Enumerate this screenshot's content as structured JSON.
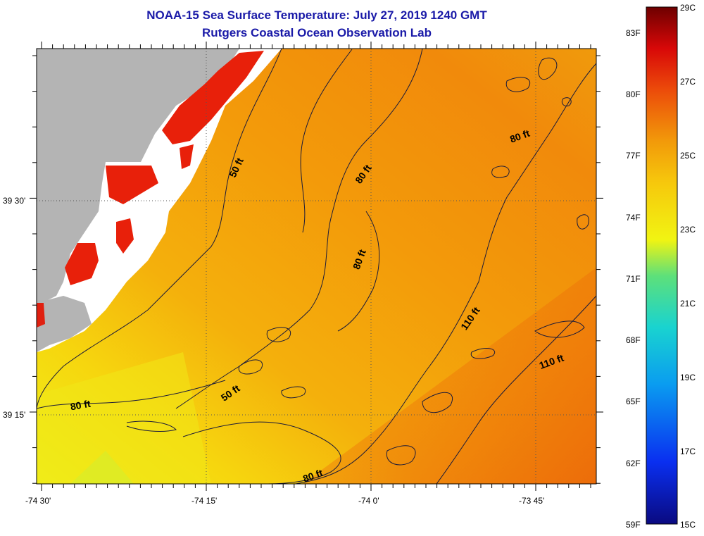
{
  "title": {
    "line1": "NOAA-15 Sea Surface Temperature:  July 27, 2019 1240 GMT",
    "line2": "Rutgers Coastal Ocean Observation Lab"
  },
  "axes": {
    "x_ticks": [
      "-74 30'",
      "-74 15'",
      "-74 0'",
      "-73 45'"
    ],
    "y_ticks": [
      "39 30'",
      "39 15'"
    ]
  },
  "contours": [
    {
      "label": "50 ft"
    },
    {
      "label": "80 ft"
    },
    {
      "label": "80 ft"
    },
    {
      "label": "80 ft"
    },
    {
      "label": "110 ft"
    },
    {
      "label": "110 ft"
    },
    {
      "label": "80 ft"
    },
    {
      "label": "50 ft"
    },
    {
      "label": "80 ft"
    }
  ],
  "colorbar": {
    "fahrenheit": [
      "83F",
      "80F",
      "77F",
      "74F",
      "71F",
      "68F",
      "65F",
      "62F",
      "59F"
    ],
    "celsius": [
      "29C",
      "27C",
      "25C",
      "23C",
      "21C",
      "19C",
      "17C",
      "15C"
    ],
    "colors": {
      "top": "#7a0000",
      "red": "#e8200a",
      "orange": "#f29a0a",
      "yellow": "#f5f40f",
      "cyan": "#19c8d8",
      "blue": "#0a3cf0",
      "bottom": "#0a0a80"
    }
  },
  "colors": {
    "land": "#b4b4b4",
    "coast_mask": "#ffffff",
    "sst_orange": "#f4a10c"
  }
}
